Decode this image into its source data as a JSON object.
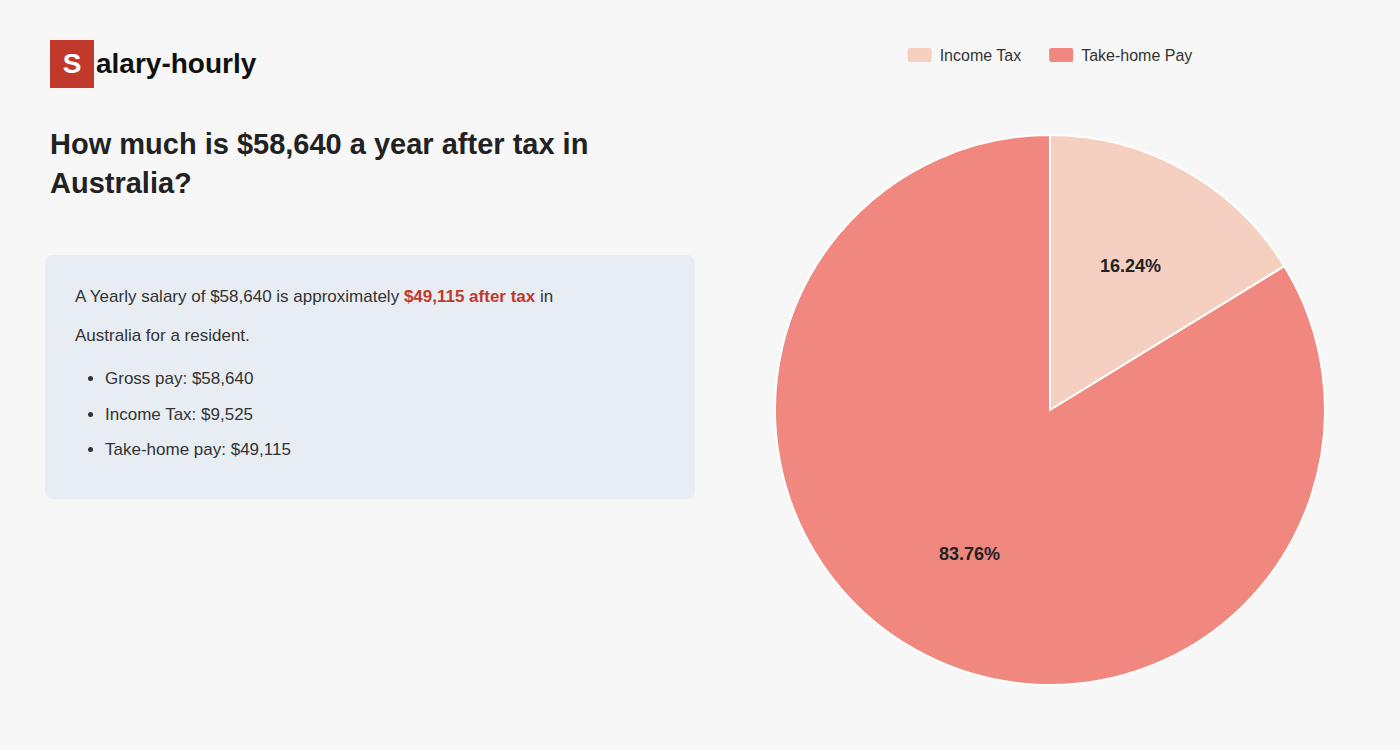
{
  "chart_data": {
    "type": "pie",
    "title": "How much is $58,640 a year after tax in\nAustralia?",
    "categories": [
      "Income Tax",
      "Take-home Pay"
    ],
    "values": [
      16.24,
      83.76
    ],
    "value_labels": [
      "16.24%",
      "83.76%"
    ],
    "colors": [
      "#f5cfc0",
      "#f08880"
    ],
    "data_labels": true,
    "legend": "top",
    "annotations": [
      {
        "text": "S",
        "color": "#c0392b"
      },
      {
        "text": "alary-hourly"
      },
      {
        "text": "A Yearly salary of $58,640 is approximately "
      },
      {
        "text": "$49,115 after tax",
        "color": "#c0392b"
      },
      {
        "text": " in"
      },
      {
        "text": "Australia for a resident."
      },
      {
        "text": "Gross pay: $58,640"
      },
      {
        "text": "Income Tax: $9,525"
      },
      {
        "text": "Take-home pay: $49,115"
      }
    ]
  }
}
